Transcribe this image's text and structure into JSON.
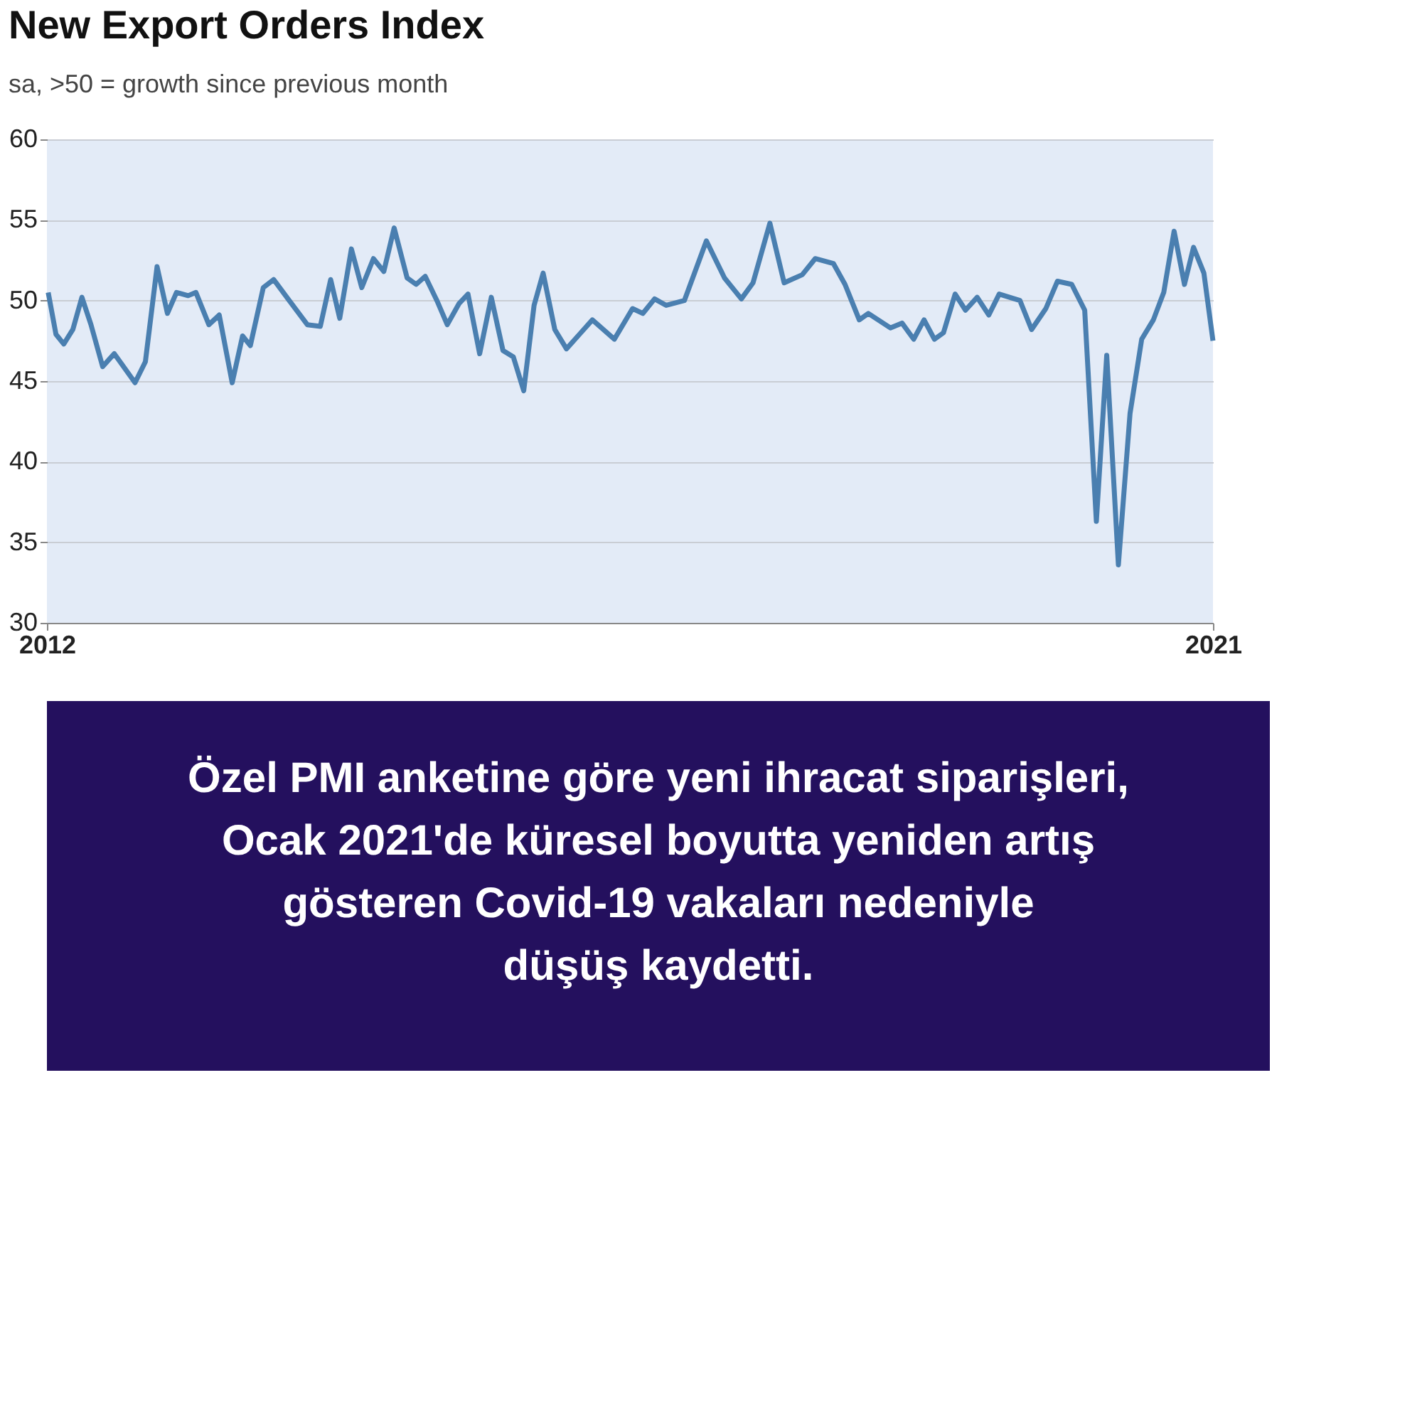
{
  "chart_data": {
    "type": "line",
    "title": "New Export Orders Index",
    "subtitle": "sa, >50 = growth since previous month",
    "x": [
      2012.01,
      2012.07,
      2012.13,
      2012.2,
      2012.27,
      2012.34,
      2012.43,
      2012.52,
      2012.68,
      2012.76,
      2012.85,
      2012.93,
      2013.0,
      2013.09,
      2013.15,
      2013.25,
      2013.33,
      2013.43,
      2013.51,
      2013.57,
      2013.67,
      2013.75,
      2013.87,
      2014.01,
      2014.11,
      2014.19,
      2014.26,
      2014.35,
      2014.43,
      2014.52,
      2014.6,
      2014.68,
      2014.78,
      2014.85,
      2014.92,
      2015.01,
      2015.09,
      2015.18,
      2015.25,
      2015.34,
      2015.43,
      2015.52,
      2015.6,
      2015.68,
      2015.76,
      2015.83,
      2015.92,
      2016.01,
      2016.11,
      2016.21,
      2016.38,
      2016.52,
      2016.6,
      2016.69,
      2016.78,
      2016.92,
      2017.09,
      2017.23,
      2017.36,
      2017.45,
      2017.58,
      2017.69,
      2017.83,
      2017.93,
      2018.07,
      2018.16,
      2018.27,
      2018.34,
      2018.51,
      2018.6,
      2018.69,
      2018.77,
      2018.85,
      2018.92,
      2019.01,
      2019.09,
      2019.18,
      2019.27,
      2019.35,
      2019.51,
      2019.6,
      2019.71,
      2019.8,
      2019.91,
      2020.01,
      2020.1,
      2020.18,
      2020.27,
      2020.36,
      2020.45,
      2020.54,
      2020.62,
      2020.7,
      2020.78,
      2020.85,
      2020.93,
      2021.0
    ],
    "series": [
      {
        "color": "#4a7fb0",
        "values": [
          50.5,
          47.9,
          47.3,
          48.2,
          50.2,
          48.5,
          45.9,
          46.7,
          44.9,
          46.2,
          52.1,
          49.2,
          50.5,
          50.3,
          50.5,
          48.5,
          49.1,
          44.9,
          47.8,
          47.2,
          50.8,
          51.3,
          50.0,
          48.5,
          48.4,
          51.3,
          48.9,
          53.2,
          50.8,
          52.6,
          51.8,
          54.5,
          51.4,
          51.0,
          51.5,
          50.0,
          48.5,
          49.8,
          50.4,
          46.7,
          50.2,
          46.9,
          46.5,
          44.4,
          49.7,
          51.7,
          48.2,
          47.0,
          47.9,
          48.8,
          47.6,
          49.5,
          49.2,
          50.1,
          49.7,
          50.0,
          53.7,
          51.4,
          50.1,
          51.1,
          54.8,
          51.1,
          51.6,
          52.6,
          52.3,
          51.0,
          48.8,
          49.2,
          48.3,
          48.6,
          47.6,
          48.8,
          47.6,
          48.0,
          50.4,
          49.4,
          50.2,
          49.1,
          50.4,
          50.0,
          48.2,
          49.5,
          51.2,
          51.0,
          49.4,
          36.3,
          46.6,
          33.6,
          43.0,
          47.6,
          48.8,
          50.5,
          54.3,
          51.0,
          53.3,
          51.7,
          47.5
        ]
      }
    ],
    "xlim": [
      2012,
      2021
    ],
    "xticks": [
      2012,
      2021
    ],
    "ylim": [
      30,
      60
    ],
    "yticks": [
      30,
      35,
      40,
      45,
      50,
      55,
      60
    ],
    "grid": "y",
    "annotations": [
      "Özel PMI anketine göre yeni ihracat siparişleri,\nOcak 2021'de küresel boyutta yeniden artış\ngösteren Covid-19 vakaları nedeniyle\ndüşüş kaydetti."
    ]
  }
}
